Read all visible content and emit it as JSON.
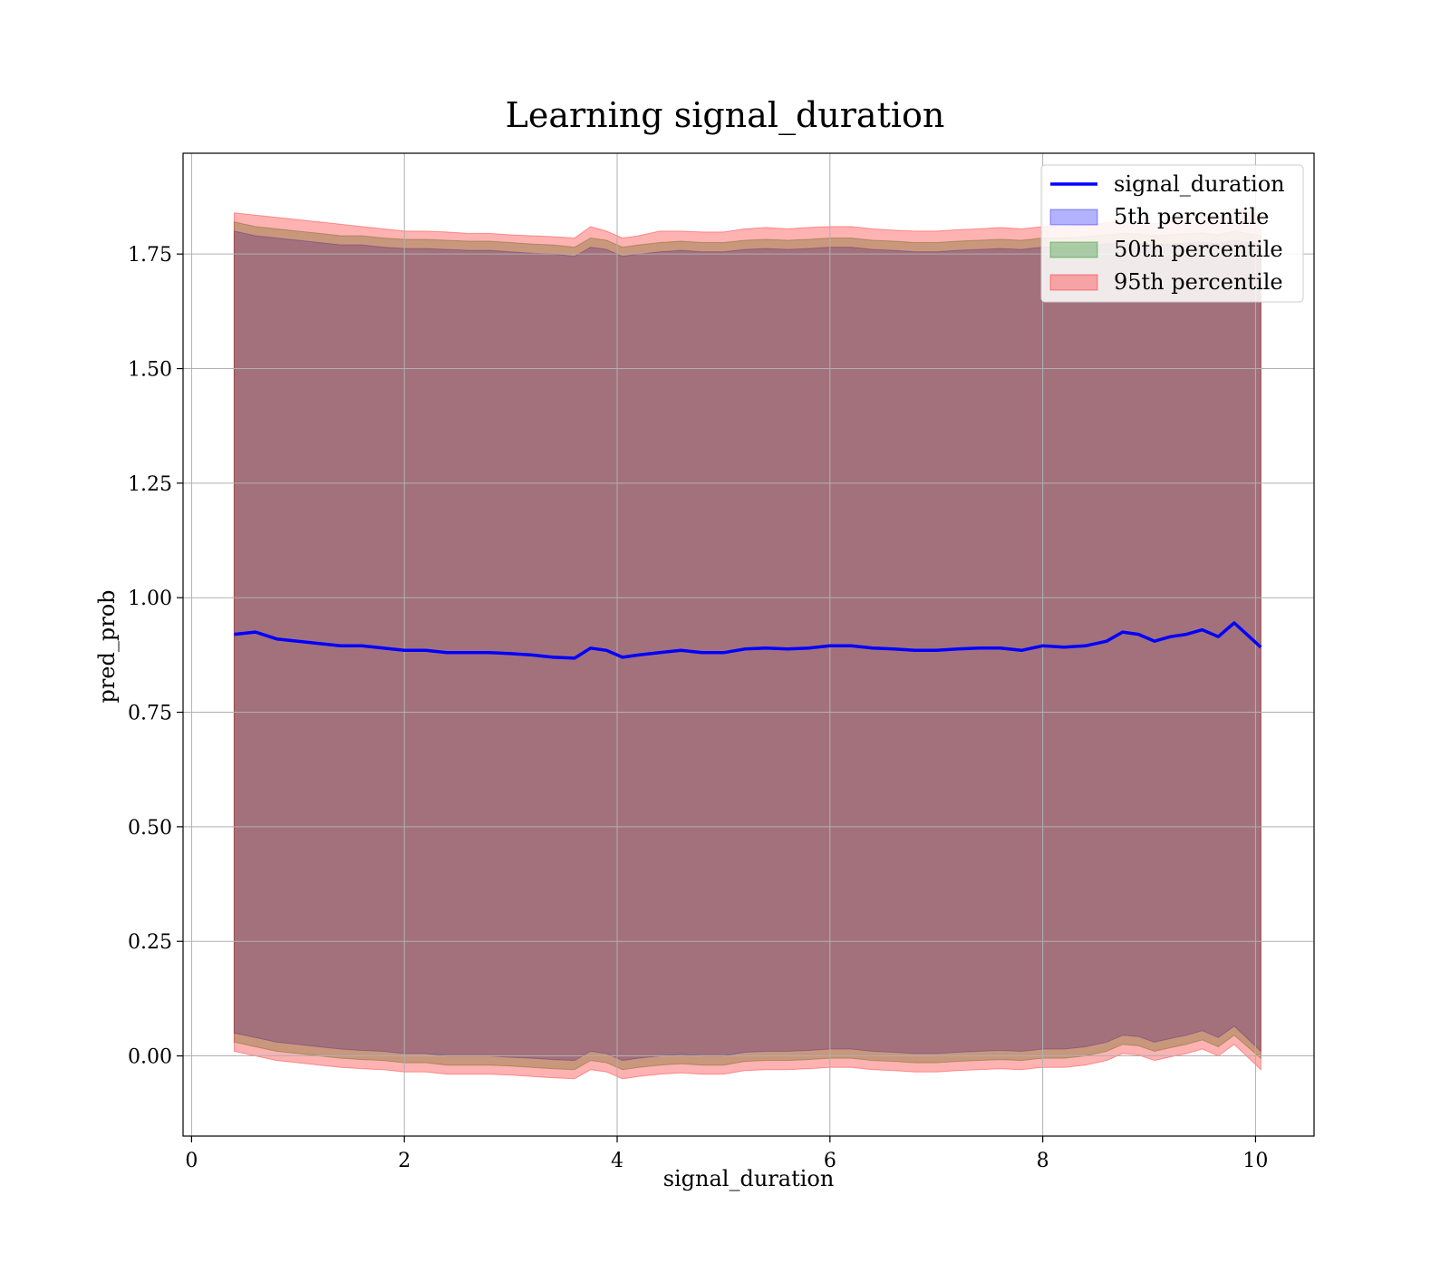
{
  "chart_data": {
    "type": "area",
    "title": "Learning signal_duration",
    "xlabel": "signal_duration",
    "ylabel": "pred_prob",
    "xlim": [
      -0.08,
      10.55
    ],
    "ylim": [
      -0.175,
      1.97
    ],
    "x_ticks": [
      0,
      2,
      4,
      6,
      8,
      10
    ],
    "x_tick_labels": [
      "0",
      "2",
      "4",
      "6",
      "8",
      "10"
    ],
    "y_ticks": [
      0.0,
      0.25,
      0.5,
      0.75,
      1.0,
      1.25,
      1.5,
      1.75
    ],
    "y_tick_labels": [
      "0.00",
      "0.25",
      "0.50",
      "0.75",
      "1.00",
      "1.25",
      "1.50",
      "1.75"
    ],
    "grid": true,
    "legend_position": "top-right",
    "legend": [
      {
        "label": "signal_duration",
        "kind": "line",
        "color": "#0000ff"
      },
      {
        "label": "5th percentile",
        "kind": "band",
        "color": "#0000ff"
      },
      {
        "label": "50th percentile",
        "kind": "band",
        "color": "#008000"
      },
      {
        "label": "95th percentile",
        "kind": "band",
        "color": "#ff0000"
      }
    ],
    "x": [
      0.4,
      0.6,
      0.8,
      1.0,
      1.2,
      1.4,
      1.6,
      1.8,
      2.0,
      2.2,
      2.4,
      2.6,
      2.8,
      3.0,
      3.2,
      3.4,
      3.6,
      3.75,
      3.9,
      4.05,
      4.2,
      4.4,
      4.6,
      4.8,
      5.0,
      5.2,
      5.4,
      5.6,
      5.8,
      6.0,
      6.2,
      6.4,
      6.6,
      6.8,
      7.0,
      7.2,
      7.4,
      7.6,
      7.8,
      8.0,
      8.2,
      8.4,
      8.6,
      8.75,
      8.9,
      9.05,
      9.2,
      9.35,
      9.5,
      9.65,
      9.8,
      10.05
    ],
    "series": [
      {
        "name": "signal_duration",
        "kind": "line",
        "color": "#0000ff",
        "values": [
          0.92,
          0.925,
          0.91,
          0.905,
          0.9,
          0.895,
          0.895,
          0.89,
          0.885,
          0.885,
          0.88,
          0.88,
          0.88,
          0.878,
          0.875,
          0.87,
          0.868,
          0.89,
          0.885,
          0.87,
          0.875,
          0.88,
          0.885,
          0.88,
          0.88,
          0.888,
          0.89,
          0.888,
          0.89,
          0.895,
          0.895,
          0.89,
          0.888,
          0.885,
          0.885,
          0.888,
          0.89,
          0.89,
          0.885,
          0.895,
          0.892,
          0.895,
          0.905,
          0.925,
          0.92,
          0.905,
          0.915,
          0.92,
          0.93,
          0.915,
          0.945,
          0.892
        ]
      },
      {
        "name": "5th percentile",
        "kind": "band",
        "color": "#0000ff",
        "lower": [
          0.05,
          0.04,
          0.03,
          0.025,
          0.02,
          0.015,
          0.012,
          0.01,
          0.005,
          0.005,
          0.0,
          0.0,
          0.0,
          -0.003,
          -0.005,
          -0.008,
          -0.01,
          0.01,
          0.005,
          -0.01,
          -0.005,
          0.0,
          0.003,
          0.0,
          0.0,
          0.008,
          0.01,
          0.01,
          0.012,
          0.015,
          0.015,
          0.01,
          0.008,
          0.005,
          0.005,
          0.008,
          0.01,
          0.012,
          0.01,
          0.015,
          0.015,
          0.02,
          0.03,
          0.045,
          0.042,
          0.03,
          0.038,
          0.045,
          0.055,
          0.04,
          0.065,
          0.01
        ],
        "upper": [
          1.8,
          1.79,
          1.785,
          1.78,
          1.775,
          1.77,
          1.77,
          1.765,
          1.762,
          1.762,
          1.76,
          1.758,
          1.758,
          1.755,
          1.752,
          1.75,
          1.745,
          1.765,
          1.76,
          1.745,
          1.75,
          1.755,
          1.758,
          1.755,
          1.755,
          1.76,
          1.762,
          1.76,
          1.762,
          1.765,
          1.765,
          1.76,
          1.758,
          1.755,
          1.755,
          1.758,
          1.76,
          1.762,
          1.76,
          1.765,
          1.765,
          1.768,
          1.772,
          1.775,
          1.774,
          1.77,
          1.772,
          1.774,
          1.776,
          1.772,
          1.78,
          1.77
        ]
      },
      {
        "name": "50th percentile",
        "kind": "band",
        "color": "#008000",
        "lower": [
          0.03,
          0.02,
          0.01,
          0.005,
          0.0,
          -0.005,
          -0.008,
          -0.01,
          -0.015,
          -0.015,
          -0.02,
          -0.02,
          -0.02,
          -0.022,
          -0.025,
          -0.028,
          -0.03,
          -0.01,
          -0.015,
          -0.03,
          -0.025,
          -0.02,
          -0.017,
          -0.02,
          -0.02,
          -0.012,
          -0.01,
          -0.01,
          -0.008,
          -0.005,
          -0.005,
          -0.01,
          -0.012,
          -0.015,
          -0.015,
          -0.012,
          -0.01,
          -0.008,
          -0.01,
          -0.005,
          -0.005,
          0.0,
          0.01,
          0.025,
          0.022,
          0.01,
          0.018,
          0.025,
          0.035,
          0.02,
          0.045,
          -0.005
        ],
        "upper": [
          1.82,
          1.81,
          1.805,
          1.8,
          1.795,
          1.79,
          1.79,
          1.785,
          1.782,
          1.782,
          1.78,
          1.778,
          1.778,
          1.775,
          1.772,
          1.77,
          1.765,
          1.785,
          1.78,
          1.765,
          1.77,
          1.775,
          1.778,
          1.775,
          1.775,
          1.78,
          1.782,
          1.78,
          1.782,
          1.785,
          1.785,
          1.78,
          1.778,
          1.775,
          1.775,
          1.778,
          1.78,
          1.782,
          1.78,
          1.785,
          1.785,
          1.788,
          1.792,
          1.795,
          1.794,
          1.79,
          1.792,
          1.794,
          1.796,
          1.792,
          1.8,
          1.79
        ]
      },
      {
        "name": "95th percentile",
        "kind": "band",
        "color": "#ff0000",
        "lower": [
          0.01,
          0.0,
          -0.01,
          -0.015,
          -0.02,
          -0.025,
          -0.028,
          -0.03,
          -0.035,
          -0.035,
          -0.04,
          -0.04,
          -0.04,
          -0.042,
          -0.045,
          -0.048,
          -0.05,
          -0.03,
          -0.035,
          -0.05,
          -0.045,
          -0.04,
          -0.037,
          -0.04,
          -0.04,
          -0.032,
          -0.03,
          -0.03,
          -0.028,
          -0.025,
          -0.025,
          -0.03,
          -0.032,
          -0.035,
          -0.035,
          -0.032,
          -0.03,
          -0.028,
          -0.03,
          -0.025,
          -0.025,
          -0.02,
          -0.01,
          0.005,
          0.002,
          -0.01,
          -0.002,
          0.005,
          0.015,
          0.0,
          0.025,
          -0.03
        ],
        "upper": [
          1.84,
          1.835,
          1.83,
          1.825,
          1.82,
          1.815,
          1.81,
          1.805,
          1.8,
          1.8,
          1.798,
          1.795,
          1.795,
          1.792,
          1.79,
          1.788,
          1.785,
          1.81,
          1.8,
          1.785,
          1.79,
          1.8,
          1.8,
          1.798,
          1.798,
          1.805,
          1.808,
          1.805,
          1.808,
          1.81,
          1.81,
          1.805,
          1.802,
          1.8,
          1.8,
          1.803,
          1.805,
          1.808,
          1.805,
          1.81,
          1.81,
          1.813,
          1.818,
          1.82,
          1.82,
          1.816,
          1.82,
          1.825,
          1.84,
          1.83,
          1.85,
          1.835
        ]
      }
    ]
  }
}
